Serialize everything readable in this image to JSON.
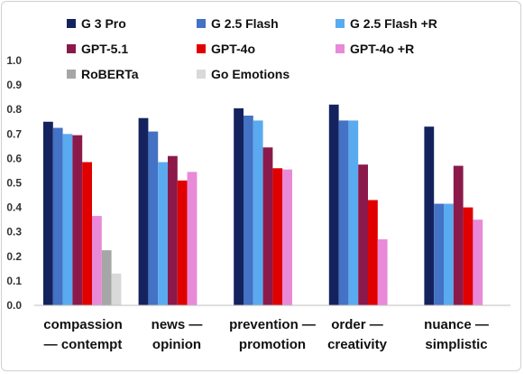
{
  "chart_data": {
    "type": "bar",
    "categories": [
      [
        "compassion",
        "— contempt"
      ],
      [
        "news —",
        "opinion"
      ],
      [
        "prevention —",
        "promotion"
      ],
      [
        "order —",
        "creativity"
      ],
      [
        "nuance —",
        "simplistic"
      ]
    ],
    "series": [
      {
        "name": "G 3 Pro",
        "color": "#14235e",
        "values": [
          0.75,
          0.765,
          0.805,
          0.82,
          0.73
        ]
      },
      {
        "name": "G 2.5 Flash",
        "color": "#4472c4",
        "values": [
          0.725,
          0.71,
          0.775,
          0.755,
          0.415
        ]
      },
      {
        "name": "G 2.5 Flash +R",
        "color": "#5aaaf0",
        "values": [
          0.7,
          0.585,
          0.755,
          0.755,
          0.415
        ]
      },
      {
        "name": "GPT-5.1",
        "color": "#8b1a4a",
        "values": [
          0.695,
          0.61,
          0.645,
          0.575,
          0.57
        ]
      },
      {
        "name": "GPT-4o",
        "color": "#e00000",
        "values": [
          0.585,
          0.51,
          0.56,
          0.43,
          0.4
        ]
      },
      {
        "name": "GPT-4o +R",
        "color": "#e88ad8",
        "values": [
          0.365,
          0.545,
          0.555,
          0.27,
          0.35
        ]
      },
      {
        "name": "RoBERTa",
        "color": "#a6a6a6",
        "values": [
          0.225,
          null,
          null,
          null,
          null
        ]
      },
      {
        "name": "Go Emotions",
        "color": "#d9d9d9",
        "values": [
          0.13,
          null,
          null,
          null,
          null
        ]
      }
    ],
    "yticks": [
      "0.0",
      "0.1",
      "0.2",
      "0.3",
      "0.4",
      "0.5",
      "0.6",
      "0.7",
      "0.8",
      "0.9",
      "1.0"
    ],
    "ylim": [
      0,
      1.0
    ],
    "grid": false,
    "legend": "top"
  }
}
